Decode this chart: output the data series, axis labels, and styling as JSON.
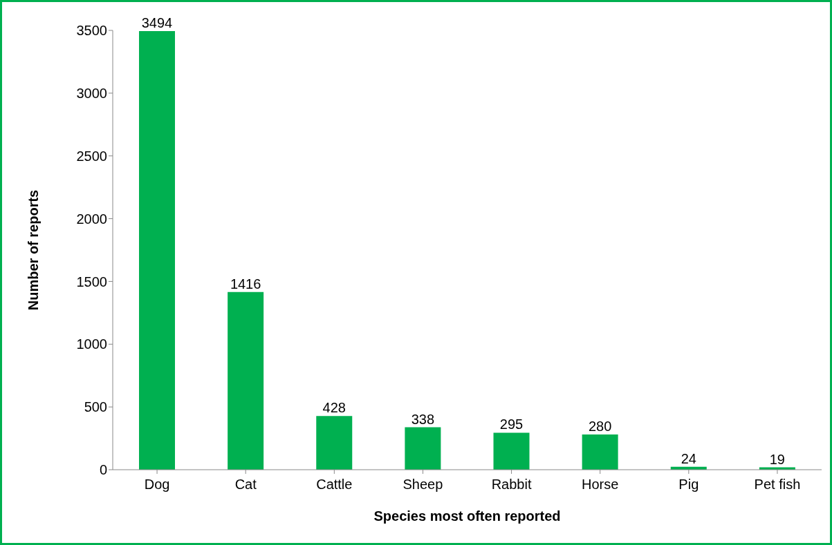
{
  "chart_data": {
    "type": "bar",
    "xlabel": "Species most often reported",
    "ylabel": "Number of reports",
    "categories": [
      "Dog",
      "Cat",
      "Cattle",
      "Sheep",
      "Rabbit",
      "Horse",
      "Pig",
      "Pet fish"
    ],
    "values": [
      3494,
      1416,
      428,
      338,
      295,
      280,
      24,
      19
    ],
    "color": "#00b050",
    "ylim": [
      0,
      3500
    ],
    "yticks": [
      0,
      500,
      1000,
      1500,
      2000,
      2500,
      3000,
      3500
    ],
    "grid": false,
    "data_labels": true
  }
}
